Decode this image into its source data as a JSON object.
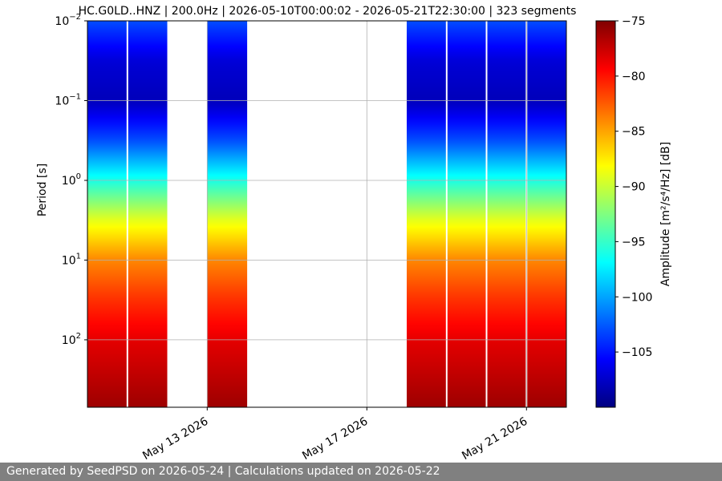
{
  "chart_data": {
    "type": "heatmap",
    "title": "HC.G0LD..HNZ | 200.0Hz | 2026-05-10T00:00:02 - 2026-05-21T22:30:00 | 323 segments",
    "ylabel": "Period [s]",
    "y_scale": "log",
    "y_inverted": true,
    "ylim_seconds": [
      0.01,
      700
    ],
    "y_ticks": [
      {
        "base": "10",
        "exp": "−2",
        "value": 0.01
      },
      {
        "base": "10",
        "exp": "−1",
        "value": 0.1
      },
      {
        "base": "10",
        "exp": "0",
        "value": 1
      },
      {
        "base": "10",
        "exp": "1",
        "value": 10
      },
      {
        "base": "10",
        "exp": "2",
        "value": 100
      }
    ],
    "x_range_days": [
      "2026-05-10",
      "2026-05-22"
    ],
    "x_ticks": [
      {
        "label": "May 13 2026",
        "date": "2026-05-13"
      },
      {
        "label": "May 17 2026",
        "date": "2026-05-17"
      },
      {
        "label": "May 21 2026",
        "date": "2026-05-21"
      }
    ],
    "data_blocks": [
      {
        "start": "2026-05-10T00:00",
        "end": "2026-05-12T00:00"
      },
      {
        "start": "2026-05-13T00:00",
        "end": "2026-05-14T00:00"
      },
      {
        "start": "2026-05-18T00:00",
        "end": "2026-05-22T00:00"
      }
    ],
    "day_separators": [
      "2026-05-11",
      "2026-05-19",
      "2026-05-20",
      "2026-05-21"
    ],
    "colorbar": {
      "label": "Amplitude [m²/s⁴/Hz] [dB]",
      "colormap": "jet",
      "range_db": [
        -110,
        -75
      ],
      "ticks": [
        -75,
        -80,
        -85,
        -90,
        -95,
        -100,
        -105
      ]
    },
    "grid": true
  },
  "footer": {
    "text": "Generated by SeedPSD on 2026-05-24 | Calculations updated on 2026-05-22"
  }
}
